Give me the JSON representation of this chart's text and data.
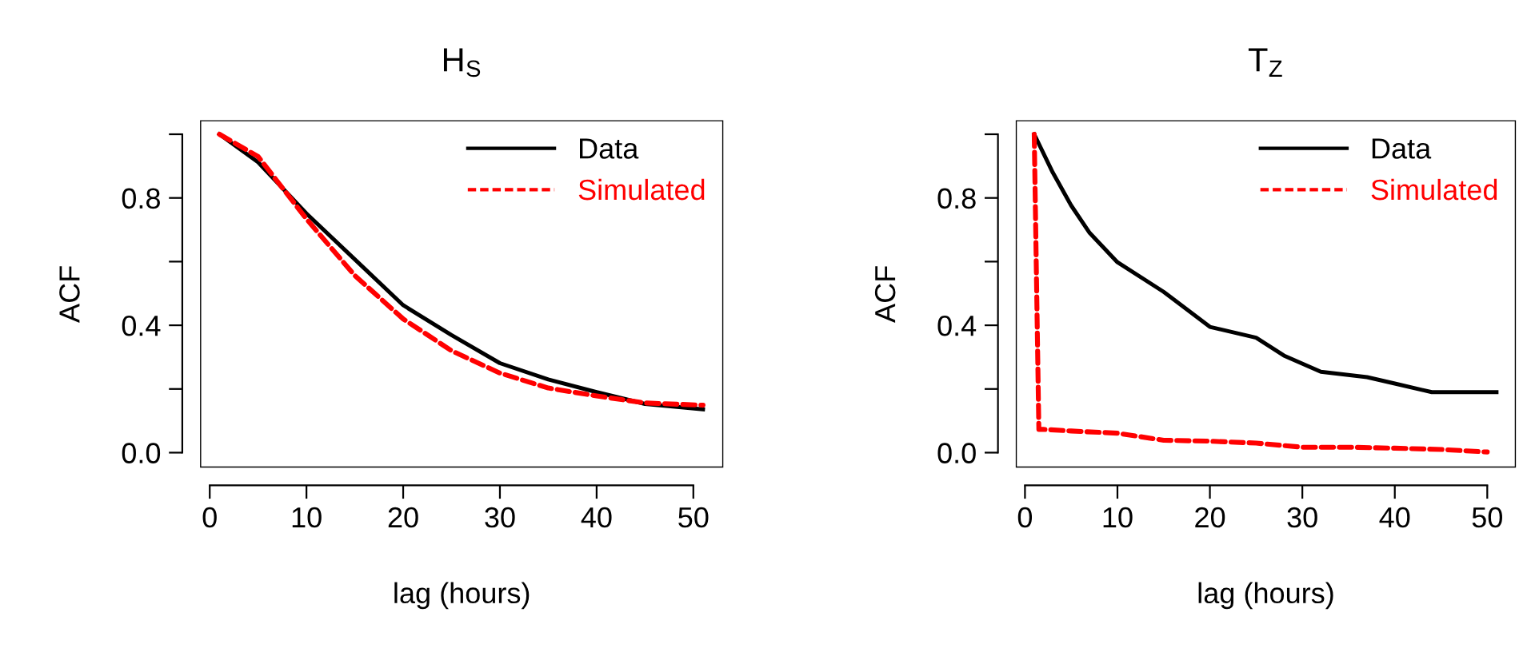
{
  "chart_data": [
    {
      "type": "line",
      "title": "H$_{S}$",
      "xlabel": "lag (hours)",
      "ylabel": "ACF",
      "xlim": [
        -1,
        53.1
      ],
      "ylim": [
        -0.047,
        1.044
      ],
      "xticks": [
        0,
        10,
        20,
        30,
        40,
        50
      ],
      "yticks": [
        {
          "value": 0,
          "label": "0.0"
        },
        {
          "value": 0.2,
          "label": null
        },
        {
          "value": 0.4,
          "label": "0.4"
        },
        {
          "value": 0.6,
          "label": null
        },
        {
          "value": 0.8,
          "label": "0.8"
        },
        {
          "value": 1.0,
          "label": null
        }
      ],
      "legend": "top right",
      "grid": false,
      "series": [
        {
          "name": "Data",
          "color": "#000000",
          "line_style": "solid",
          "x": [
            1,
            5,
            10,
            15,
            20,
            25,
            30,
            35,
            40,
            45,
            51
          ],
          "values": [
            1.0,
            0.912,
            0.751,
            0.607,
            0.463,
            0.369,
            0.281,
            0.23,
            0.19,
            0.153,
            0.136
          ]
        },
        {
          "name": "Simulated",
          "color": "#ff0000",
          "line_style": "dashed",
          "x": [
            1,
            5,
            10,
            15,
            20,
            25,
            30,
            35,
            40,
            45,
            51
          ],
          "values": [
            1.0,
            0.93,
            0.734,
            0.556,
            0.42,
            0.32,
            0.25,
            0.203,
            0.178,
            0.156,
            0.149
          ]
        }
      ]
    },
    {
      "type": "line",
      "title": "T$_{Z}$",
      "xlabel": "lag (hours)",
      "ylabel": "ACF",
      "xlim": [
        -1,
        53.1
      ],
      "ylim": [
        -0.047,
        1.044
      ],
      "xticks": [
        0,
        10,
        20,
        30,
        40,
        50
      ],
      "yticks": [
        {
          "value": 0,
          "label": "0.0"
        },
        {
          "value": 0.2,
          "label": null
        },
        {
          "value": 0.4,
          "label": "0.4"
        },
        {
          "value": 0.6,
          "label": null
        },
        {
          "value": 0.8,
          "label": "0.8"
        },
        {
          "value": 1.0,
          "label": null
        }
      ],
      "legend": "top right",
      "grid": false,
      "series": [
        {
          "name": "Data",
          "color": "#000000",
          "line_style": "solid",
          "x": [
            1,
            3,
            5,
            7,
            10,
            15,
            20,
            25,
            28,
            32,
            37,
            40,
            44,
            51
          ],
          "values": [
            1.0,
            0.88,
            0.776,
            0.69,
            0.598,
            0.505,
            0.395,
            0.361,
            0.305,
            0.254,
            0.237,
            0.217,
            0.19,
            0.19
          ]
        },
        {
          "name": "Simulated",
          "color": "#ff0000",
          "line_style": "dashed",
          "x": [
            1,
            1.5,
            2,
            5,
            10,
            15,
            20,
            25,
            30,
            35,
            40,
            45,
            50
          ],
          "values": [
            1.0,
            0.073,
            0.073,
            0.068,
            0.061,
            0.039,
            0.036,
            0.03,
            0.017,
            0.017,
            0.014,
            0.01,
            0.002
          ]
        }
      ]
    }
  ]
}
